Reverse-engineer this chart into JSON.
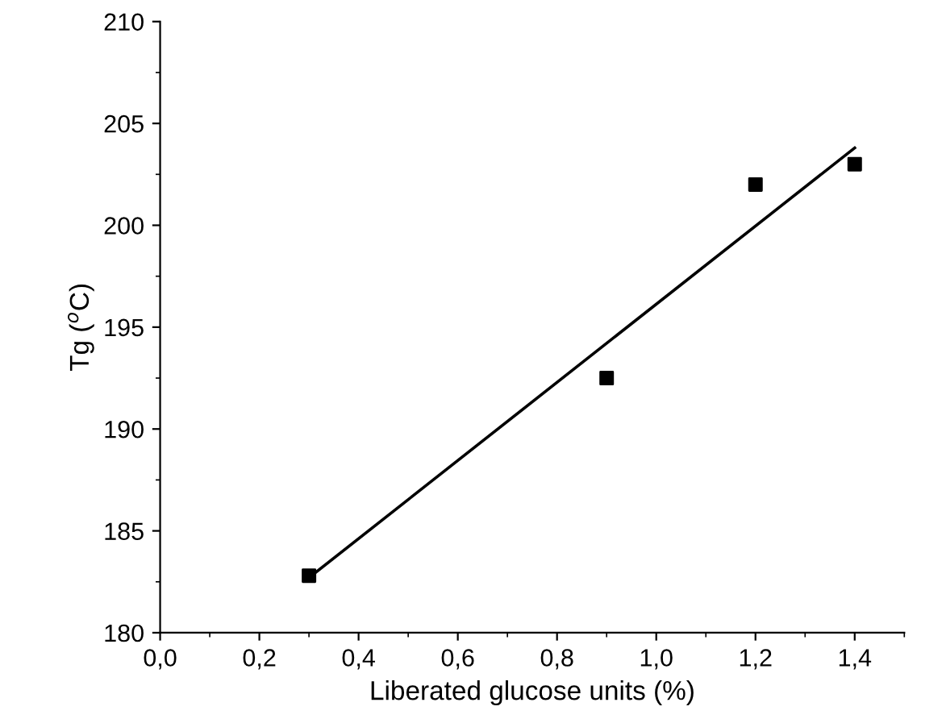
{
  "chart_data": {
    "type": "scatter",
    "xlabel": "Liberated glucose units (%)",
    "ylabel": "Tg ($^{o}$C)",
    "xlim": [
      0,
      1.5
    ],
    "ylim": [
      180,
      210
    ],
    "xticks": [
      {
        "value": 0,
        "label": "0,0"
      },
      {
        "value": 0.2,
        "label": "0,2"
      },
      {
        "value": 0.4,
        "label": "0,4"
      },
      {
        "value": 0.6,
        "label": "0,6"
      },
      {
        "value": 0.8,
        "label": "0,8"
      },
      {
        "value": 1.0,
        "label": "1,0"
      },
      {
        "value": 1.2,
        "label": "1,2"
      },
      {
        "value": 1.4,
        "label": "1,4"
      }
    ],
    "yticks": [
      180,
      185,
      190,
      195,
      200,
      205,
      210
    ],
    "grid": false,
    "legend": false,
    "series": [
      {
        "color": "#000000",
        "marker": "square",
        "x": [
          0.3,
          0.9,
          1.2,
          1.4
        ],
        "values": [
          182.8,
          192.5,
          202.0,
          203.0
        ]
      },
      {
        "type": "line",
        "color": "#000000",
        "line_style": "solid",
        "x": [
          0.3,
          1.4
        ],
        "values": [
          182.7,
          203.8
        ]
      }
    ]
  }
}
